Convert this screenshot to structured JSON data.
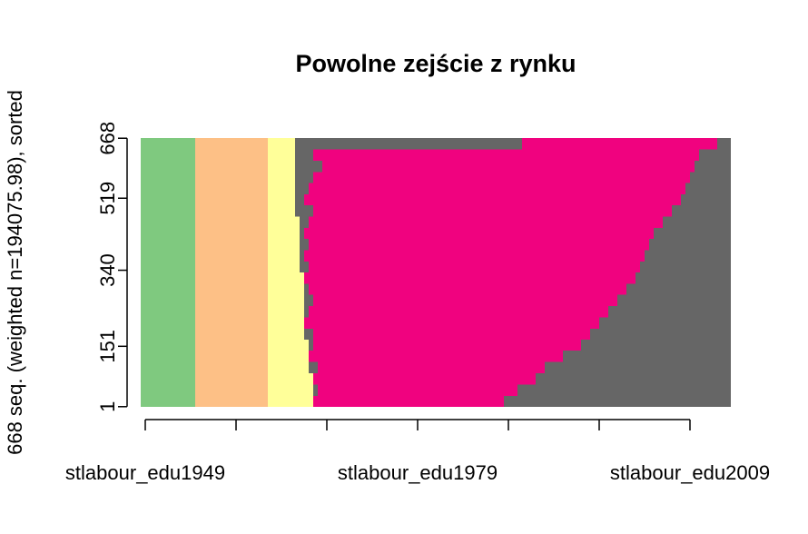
{
  "chart_data": {
    "type": "sequence",
    "title": "Powolne zejście z rynku",
    "y_label": "668 seq. (weighted n=194075.98), sorted",
    "xlim": [
      0.5,
      65.5
    ],
    "ylim": [
      0.5,
      668.5
    ],
    "yticks": [
      1,
      151,
      340,
      519,
      668
    ],
    "xticks": [
      {
        "value": 1,
        "label": "stlabour_edu1949"
      },
      {
        "value": 11,
        "label": null
      },
      {
        "value": 21,
        "label": null
      },
      {
        "value": 31,
        "label": "stlabour_edu1979"
      },
      {
        "value": 41,
        "label": null
      },
      {
        "value": 51,
        "label": null
      },
      {
        "value": 61,
        "label": "stlabour_edu2009"
      }
    ],
    "y": [
      28,
      56,
      84,
      112,
      140,
      167,
      195,
      223,
      251,
      279,
      306,
      334,
      362,
      390,
      418,
      445,
      473,
      501,
      529,
      557,
      584,
      612,
      640,
      668
    ],
    "series": [
      {
        "color": "#7fc97f",
        "values": [
          6,
          6,
          6,
          6,
          6,
          6,
          6,
          6,
          6,
          6,
          6,
          6,
          6,
          6,
          6,
          6,
          6,
          6,
          6,
          6,
          6,
          6,
          6,
          6
        ]
      },
      {
        "color": "#fdc086",
        "values": [
          8,
          8,
          8,
          8,
          8,
          8,
          8,
          8,
          8,
          8,
          8,
          8,
          8,
          8,
          8,
          8,
          8,
          8,
          8,
          8,
          8,
          8,
          8,
          8
        ]
      },
      {
        "color": "#ffff99",
        "values": [
          5,
          5,
          5,
          4.5,
          4.5,
          4.5,
          4,
          4,
          4,
          4,
          4,
          4,
          3.5,
          3.5,
          3.5,
          3.5,
          3.5,
          3,
          3,
          3,
          3,
          3,
          3,
          3
        ]
      },
      {
        "color": "#666666",
        "values": [
          0,
          0.5,
          0,
          1,
          0,
          0.5,
          1,
          0,
          0.5,
          1,
          0.5,
          0,
          1,
          0.5,
          1,
          0.5,
          1,
          2,
          1,
          1.5,
          2,
          3,
          2,
          25
        ]
      },
      {
        "color": "#f0027f",
        "values": [
          21,
          22,
          24.5,
          25,
          28,
          29.5,
          30.5,
          32.5,
          33,
          33.5,
          35,
          36.5,
          36.5,
          37.5,
          37.5,
          38.5,
          39,
          39.5,
          41.5,
          41.5,
          41.5,
          41,
          42.5,
          21.5
        ]
      },
      {
        "color": "#666666",
        "values": [
          25,
          23.5,
          21.5,
          20.5,
          18.5,
          16.5,
          15.5,
          14.5,
          13.5,
          12.5,
          11.5,
          10.5,
          10,
          9.5,
          9,
          8.5,
          7.5,
          6.5,
          5.5,
          5,
          4.5,
          4,
          3.5,
          1.5
        ]
      }
    ]
  }
}
